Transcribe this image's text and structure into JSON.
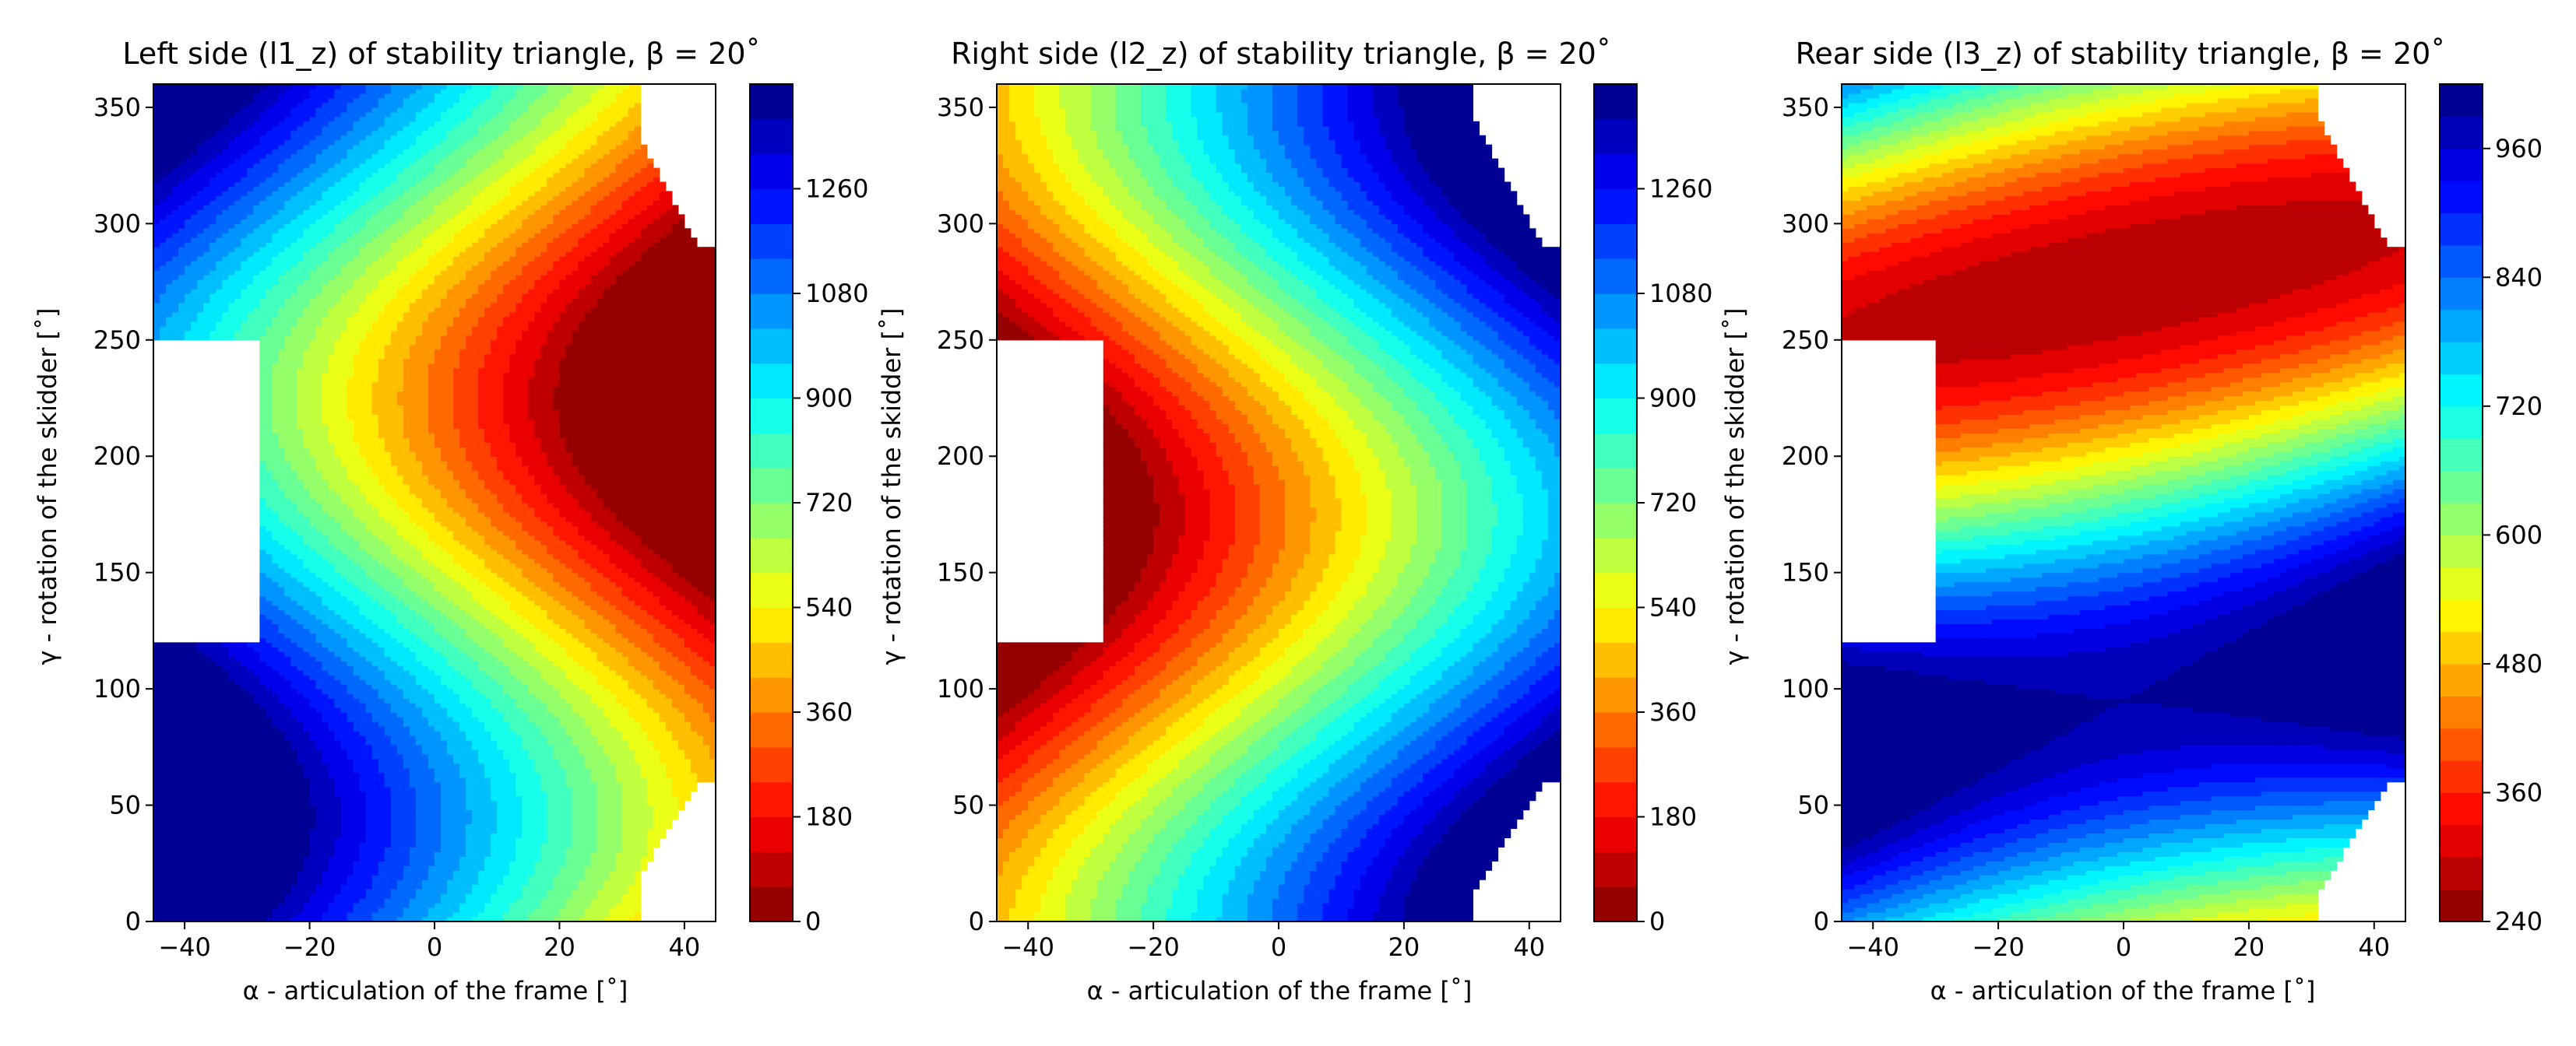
{
  "chart_data": [
    {
      "type": "heatmap",
      "id": "l1",
      "title": "Left side (l1_z) of stability triangle, β = 20˚",
      "xlabel": "α - articulation of the frame [˚]",
      "ylabel": "γ - rotation of the skidder [˚]",
      "xlim": [
        -45,
        45
      ],
      "ylim": [
        0,
        360
      ],
      "xticks": [
        "−40",
        "−20",
        "0",
        "20",
        "40"
      ],
      "xtick_values": [
        -40,
        -20,
        0,
        20,
        40
      ],
      "yticks": [
        "0",
        "50",
        "100",
        "150",
        "200",
        "250",
        "300",
        "350"
      ],
      "ytick_values": [
        0,
        50,
        100,
        150,
        200,
        250,
        300,
        350
      ],
      "colorbar": {
        "min": 0,
        "max": 1440,
        "levels": 24,
        "ticks": [
          "0",
          "180",
          "360",
          "540",
          "720",
          "900",
          "1080",
          "1260"
        ],
        "tick_values": [
          0,
          180,
          360,
          540,
          720,
          900,
          1080,
          1260
        ]
      },
      "colormap": "jet-reversed",
      "field": "l1",
      "grid": false
    },
    {
      "type": "heatmap",
      "id": "l2",
      "title": "Right side (l2_z) of stability triangle, β = 20˚",
      "xlabel": "α - articulation of the frame [˚]",
      "ylabel": "γ - rotation of the skidder [˚]",
      "xlim": [
        -45,
        45
      ],
      "ylim": [
        0,
        360
      ],
      "xticks": [
        "−40",
        "−20",
        "0",
        "20",
        "40"
      ],
      "xtick_values": [
        -40,
        -20,
        0,
        20,
        40
      ],
      "yticks": [
        "0",
        "50",
        "100",
        "150",
        "200",
        "250",
        "300",
        "350"
      ],
      "ytick_values": [
        0,
        50,
        100,
        150,
        200,
        250,
        300,
        350
      ],
      "colorbar": {
        "min": 0,
        "max": 1440,
        "levels": 24,
        "ticks": [
          "0",
          "180",
          "360",
          "540",
          "720",
          "900",
          "1080",
          "1260"
        ],
        "tick_values": [
          0,
          180,
          360,
          540,
          720,
          900,
          1080,
          1260
        ]
      },
      "colormap": "jet-reversed",
      "field": "l2",
      "grid": false
    },
    {
      "type": "heatmap",
      "id": "l3",
      "title": "Rear side (l3_z) of stability triangle, β = 20˚",
      "xlabel": "α - articulation of the frame [˚]",
      "ylabel": "γ - rotation of the skidder [˚]",
      "xlim": [
        -45,
        45
      ],
      "ylim": [
        0,
        360
      ],
      "xticks": [
        "−40",
        "−20",
        "0",
        "20",
        "40"
      ],
      "xtick_values": [
        -40,
        -20,
        0,
        20,
        40
      ],
      "yticks": [
        "0",
        "50",
        "100",
        "150",
        "200",
        "250",
        "300",
        "350"
      ],
      "ytick_values": [
        0,
        50,
        100,
        150,
        200,
        250,
        300,
        350
      ],
      "colorbar": {
        "min": 240,
        "max": 1020,
        "levels": 26,
        "ticks": [
          "240",
          "360",
          "480",
          "600",
          "720",
          "840",
          "960"
        ],
        "tick_values": [
          240,
          360,
          480,
          600,
          720,
          840,
          960
        ]
      },
      "colormap": "jet-reversed",
      "field": "l3",
      "grid": false
    }
  ]
}
